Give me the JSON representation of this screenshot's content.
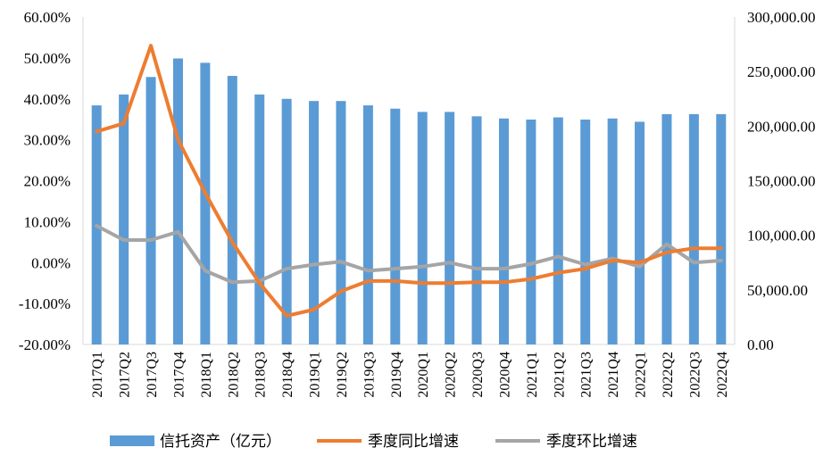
{
  "chart_data": {
    "type": "bar",
    "categories": [
      "2017Q1",
      "2017Q2",
      "2017Q3",
      "2017Q4",
      "2018Q1",
      "2018Q2",
      "2018Q3",
      "2018Q4",
      "2019Q1",
      "2019Q2",
      "2019Q3",
      "2019Q4",
      "2020Q1",
      "2020Q2",
      "2020Q3",
      "2020Q4",
      "2021Q1",
      "2021Q2",
      "2021Q3",
      "2021Q4",
      "2022Q1",
      "2022Q2",
      "2022Q3",
      "2022Q4"
    ],
    "series": [
      {
        "name": "信托资产（亿元）",
        "type": "bar",
        "axis": "right",
        "color": "#5B9BD5",
        "values": [
          219000,
          229000,
          245000,
          262000,
          258000,
          246000,
          229000,
          225000,
          223000,
          223000,
          219000,
          216000,
          213000,
          213000,
          209000,
          207000,
          206000,
          208000,
          206000,
          207000,
          204000,
          211000,
          211000,
          211000
        ]
      },
      {
        "name": "季度同比增速",
        "type": "line",
        "axis": "left",
        "color": "#ED7D31",
        "values": [
          32.0,
          34.0,
          53.0,
          30.0,
          17.0,
          5.0,
          -5.0,
          -13.0,
          -11.5,
          -7.0,
          -4.5,
          -4.5,
          -5.0,
          -5.0,
          -4.8,
          -4.8,
          -4.0,
          -2.5,
          -1.5,
          0.5,
          0.0,
          2.5,
          3.5,
          3.5
        ]
      },
      {
        "name": "季度环比增速",
        "type": "line",
        "axis": "left",
        "color": "#A5A5A5",
        "values": [
          9.0,
          5.5,
          5.5,
          7.5,
          -2.0,
          -4.8,
          -4.5,
          -1.5,
          -0.5,
          0.2,
          -2.0,
          -1.5,
          -1.0,
          0.0,
          -1.5,
          -1.5,
          -0.3,
          1.5,
          -0.5,
          1.0,
          -1.0,
          4.5,
          0.0,
          0.5
        ]
      }
    ],
    "y_left": {
      "min": -20,
      "max": 60,
      "step": 10,
      "tick_labels": [
        "-20.00%",
        "-10.00%",
        "0.00%",
        "10.00%",
        "20.00%",
        "30.00%",
        "40.00%",
        "50.00%",
        "60.00%"
      ]
    },
    "y_right": {
      "min": 0,
      "max": 300000,
      "step": 50000,
      "tick_labels": [
        "0.00",
        "50,000.00",
        "100,000.00",
        "150,000.00",
        "200,000.00",
        "250,000.00",
        "300,000.00"
      ]
    },
    "grid": false,
    "legend_position": "bottom"
  }
}
